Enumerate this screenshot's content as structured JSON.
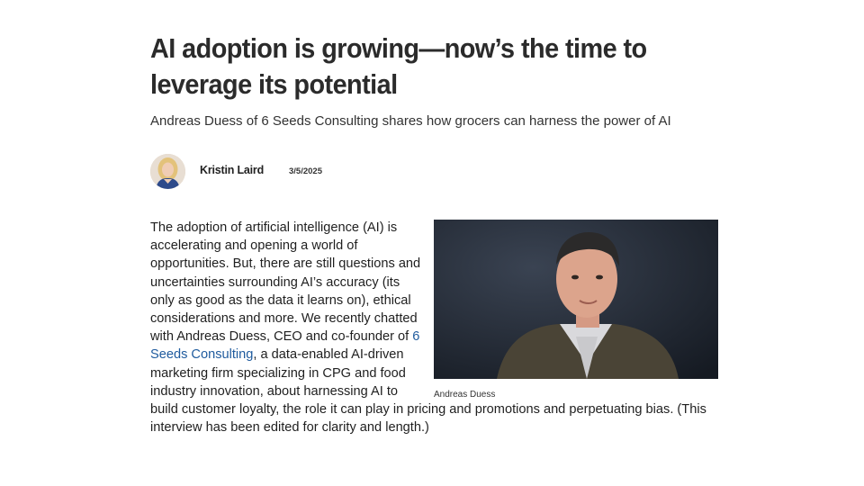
{
  "article": {
    "headline": "AI adoption is growing—now’s the time to leverage its potential",
    "subhead": "Andreas Duess of 6 Seeds Consulting shares how grocers can harness the power of AI",
    "author": "Kristin Laird",
    "date": "3/5/2025",
    "body_before_link": "The adoption of artificial intelligence (AI) is accelerating and opening a world of opportunities. But, there are still questions and uncertainties surrounding AI’s accuracy (its only as good as the data it learns on), ethical considerations and more. We recently chatted with Andreas Duess, CEO and co-founder of ",
    "body_link": "6 Seeds Consulting",
    "body_after_link": ", a data-enabled AI-driven marketing firm specializing in CPG and food industry innovation, about harnessing AI to build customer loyalty, the role it can play in pricing and promotions and perpetuating bias. (This interview has been edited for clarity and length.)",
    "photo_caption": "Andreas Duess"
  },
  "colors": {
    "link": "#1f5b9e",
    "headline": "#2b2b2b",
    "photo_background": "#1e2430"
  },
  "icons": {
    "author_avatar": "author-avatar",
    "article_photo": "portrait-photo"
  }
}
